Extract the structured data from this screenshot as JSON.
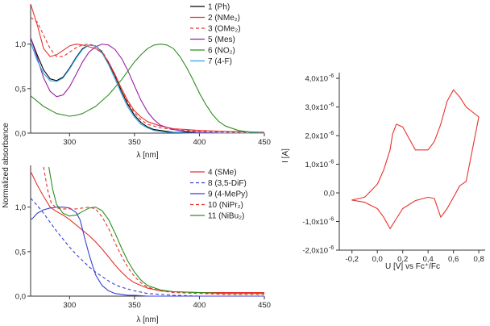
{
  "chart_data": [
    {
      "type": "line",
      "panel": "top-left",
      "xlabel": "λ [nm]",
      "ylabel": "Normalized absorbance",
      "xlim": [
        270,
        450
      ],
      "ylim": [
        0,
        1.45
      ],
      "xticks": [
        "300",
        "350",
        "400",
        "450"
      ],
      "yticks": [
        "0,0",
        "0,5",
        "1,0"
      ],
      "legend_position": "top-right",
      "series": [
        {
          "name": "1 (Ph)",
          "color": "#000000",
          "dash": false,
          "x": [
            270,
            275,
            280,
            285,
            290,
            295,
            300,
            305,
            310,
            315,
            320,
            325,
            330,
            335,
            340,
            345,
            350,
            355,
            360,
            365,
            370,
            375,
            380,
            390,
            400,
            420,
            450
          ],
          "y": [
            1.07,
            0.88,
            0.71,
            0.61,
            0.59,
            0.63,
            0.73,
            0.85,
            0.95,
            0.99,
            0.98,
            0.91,
            0.79,
            0.64,
            0.47,
            0.32,
            0.2,
            0.12,
            0.07,
            0.04,
            0.03,
            0.02,
            0.01,
            0.01,
            0.0,
            0.0,
            0.0
          ]
        },
        {
          "name": "2 (NMe2)",
          "color": "#e8312b",
          "dash": false,
          "x": [
            270,
            275,
            280,
            285,
            290,
            295,
            300,
            305,
            310,
            315,
            320,
            325,
            330,
            335,
            340,
            345,
            350,
            355,
            360,
            370,
            380,
            390,
            400,
            420,
            450
          ],
          "y": [
            1.5,
            1.22,
            0.95,
            0.86,
            0.88,
            0.93,
            0.98,
            1.0,
            0.99,
            0.97,
            0.95,
            0.9,
            0.8,
            0.66,
            0.5,
            0.36,
            0.25,
            0.18,
            0.13,
            0.08,
            0.05,
            0.04,
            0.03,
            0.02,
            0.01
          ]
        },
        {
          "name": "3 (OMe2)",
          "color": "#e8312b",
          "dash": true,
          "x": [
            270,
            275,
            280,
            285,
            290,
            295,
            300,
            305,
            310,
            315,
            320,
            325,
            330,
            335,
            340,
            345,
            350,
            355,
            360,
            370,
            380,
            390,
            400,
            420,
            450
          ],
          "y": [
            1.3,
            1.25,
            1.1,
            0.95,
            0.86,
            0.86,
            0.91,
            0.96,
            0.99,
            1.0,
            0.98,
            0.92,
            0.8,
            0.65,
            0.48,
            0.34,
            0.23,
            0.15,
            0.1,
            0.06,
            0.04,
            0.03,
            0.02,
            0.01,
            0.01
          ]
        },
        {
          "name": "5 (Mes)",
          "color": "#9a1fa3",
          "dash": false,
          "x": [
            270,
            275,
            280,
            285,
            290,
            295,
            300,
            305,
            310,
            315,
            320,
            325,
            330,
            335,
            340,
            345,
            350,
            355,
            360,
            365,
            370,
            380,
            390,
            400,
            420,
            450
          ],
          "y": [
            1.07,
            0.85,
            0.62,
            0.47,
            0.41,
            0.43,
            0.52,
            0.66,
            0.8,
            0.91,
            0.97,
            1.0,
            0.99,
            0.94,
            0.84,
            0.7,
            0.53,
            0.37,
            0.24,
            0.15,
            0.09,
            0.04,
            0.02,
            0.01,
            0.0,
            0.0
          ]
        },
        {
          "name": "6 (NO2)",
          "color": "#2c8f1e",
          "dash": false,
          "x": [
            270,
            280,
            290,
            300,
            305,
            310,
            320,
            330,
            340,
            345,
            350,
            355,
            360,
            365,
            370,
            375,
            380,
            385,
            390,
            395,
            400,
            405,
            410,
            415,
            420,
            430,
            440,
            450
          ],
          "y": [
            0.42,
            0.3,
            0.22,
            0.19,
            0.2,
            0.22,
            0.3,
            0.43,
            0.6,
            0.7,
            0.8,
            0.88,
            0.95,
            0.99,
            1.0,
            0.99,
            0.95,
            0.86,
            0.74,
            0.6,
            0.45,
            0.32,
            0.21,
            0.13,
            0.08,
            0.03,
            0.01,
            0.0
          ]
        },
        {
          "name": "7 (4-F)",
          "color": "#2ea3e6",
          "dash": false,
          "x": [
            270,
            275,
            280,
            285,
            290,
            295,
            300,
            305,
            310,
            315,
            320,
            325,
            330,
            335,
            340,
            345,
            350,
            355,
            360,
            365,
            370,
            375,
            380,
            390,
            400,
            420,
            450
          ],
          "y": [
            1.02,
            0.82,
            0.67,
            0.59,
            0.58,
            0.62,
            0.72,
            0.84,
            0.94,
            0.99,
            0.98,
            0.9,
            0.77,
            0.61,
            0.44,
            0.29,
            0.18,
            0.1,
            0.06,
            0.03,
            0.02,
            0.01,
            0.01,
            0.0,
            0.0,
            0.0,
            0.0
          ]
        }
      ]
    },
    {
      "type": "line",
      "panel": "bottom-left",
      "xlabel": "λ [nm]",
      "ylabel": "",
      "xlim": [
        270,
        450
      ],
      "ylim": [
        0,
        1.45
      ],
      "xticks": [
        "300",
        "350",
        "400",
        "450"
      ],
      "yticks": [
        "0,0",
        "0,5",
        "1,0"
      ],
      "legend_position": "top-right",
      "series": [
        {
          "name": "4 (SMe)",
          "color": "#e8312b",
          "dash": false,
          "x": [
            270,
            275,
            280,
            285,
            290,
            295,
            300,
            305,
            310,
            315,
            320,
            325,
            330,
            335,
            340,
            345,
            350,
            360,
            370,
            380,
            400,
            420,
            450
          ],
          "y": [
            1.4,
            1.25,
            1.12,
            1.0,
            0.95,
            0.91,
            0.86,
            0.8,
            0.74,
            0.68,
            0.61,
            0.53,
            0.44,
            0.35,
            0.27,
            0.2,
            0.15,
            0.09,
            0.06,
            0.05,
            0.04,
            0.04,
            0.04
          ]
        },
        {
          "name": "8 (3,5-DiF)",
          "color": "#3a3fd4",
          "dash": true,
          "x": [
            270,
            275,
            280,
            285,
            290,
            295,
            300,
            305,
            310,
            315,
            320,
            325,
            330,
            335,
            340,
            345,
            350,
            360,
            370,
            380,
            400,
            420,
            450
          ],
          "y": [
            1.1,
            1.02,
            0.93,
            0.83,
            0.73,
            0.64,
            0.55,
            0.47,
            0.4,
            0.33,
            0.27,
            0.22,
            0.17,
            0.13,
            0.1,
            0.08,
            0.06,
            0.03,
            0.02,
            0.01,
            0.0,
            0.0,
            0.0
          ]
        },
        {
          "name": "9 (4-MePy)",
          "color": "#3a3fd4",
          "dash": false,
          "x": [
            270,
            272,
            275,
            280,
            285,
            290,
            295,
            300,
            305,
            308,
            310,
            312,
            315,
            318,
            320,
            325,
            330,
            335,
            340,
            345,
            350,
            360,
            380,
            400,
            420,
            450
          ],
          "y": [
            0.86,
            0.88,
            0.93,
            0.97,
            0.99,
            1.0,
            1.0,
            0.99,
            0.94,
            0.86,
            0.75,
            0.63,
            0.47,
            0.33,
            0.24,
            0.12,
            0.06,
            0.03,
            0.02,
            0.01,
            0.01,
            0.0,
            0.0,
            0.0,
            0.0,
            0.0
          ]
        },
        {
          "name": "10 (NiPr2)",
          "color": "#e8312b",
          "dash": true,
          "x": [
            280,
            283,
            286,
            290,
            295,
            300,
            305,
            310,
            315,
            320,
            325,
            330,
            335,
            340,
            345,
            350,
            355,
            360,
            370,
            380,
            400,
            420,
            450
          ],
          "y": [
            1.45,
            1.2,
            1.04,
            0.99,
            0.98,
            0.98,
            0.98,
            0.99,
            1.0,
            0.98,
            0.89,
            0.76,
            0.6,
            0.45,
            0.32,
            0.22,
            0.15,
            0.1,
            0.06,
            0.04,
            0.03,
            0.02,
            0.02
          ]
        },
        {
          "name": "11 (NiBu2)",
          "color": "#2c8f1e",
          "dash": false,
          "x": [
            284,
            287,
            290,
            295,
            300,
            305,
            310,
            315,
            320,
            325,
            330,
            335,
            340,
            345,
            350,
            355,
            360,
            370,
            380,
            400,
            420,
            450
          ],
          "y": [
            1.45,
            1.2,
            1.03,
            0.93,
            0.9,
            0.91,
            0.95,
            0.99,
            1.0,
            0.96,
            0.86,
            0.71,
            0.54,
            0.39,
            0.27,
            0.18,
            0.12,
            0.07,
            0.05,
            0.04,
            0.03,
            0.03
          ]
        }
      ]
    },
    {
      "type": "line",
      "panel": "right",
      "xlabel": "U [V] vs Fc⁺/Fc",
      "ylabel": "I [A]",
      "xlim": [
        -0.3,
        0.85
      ],
      "ylim": [
        -2e-06,
        4.2e-06
      ],
      "xticks": [
        "-0,2",
        "0,0",
        "0,2",
        "0,4",
        "0,6",
        "0,8"
      ],
      "yticks": [
        "-2,0x10",
        "-1,0x10",
        "0,0",
        "1,0x10",
        "2,0x10",
        "3,0x10",
        "4,0x10"
      ],
      "ytick_exponent": "-6",
      "series": [
        {
          "name": "",
          "color": "#e8312b",
          "dash": false,
          "x": [
            -0.2,
            -0.1,
            0.0,
            0.05,
            0.1,
            0.15,
            0.2,
            0.3,
            0.4,
            0.45,
            0.5,
            0.55,
            0.6,
            0.65,
            0.7,
            0.8,
            0.7,
            0.65,
            0.6,
            0.55,
            0.5,
            0.45,
            0.4,
            0.3,
            0.2,
            0.15,
            0.12,
            0.1,
            0.05,
            0.0,
            -0.1,
            -0.2
          ],
          "y": [
            -2.5e-07,
            -3.3e-07,
            -5.5e-07,
            -8.5e-07,
            -1.25e-06,
            -9e-07,
            -5.5e-07,
            -2.7e-07,
            -1.5e-07,
            -2e-07,
            -8.5e-07,
            -5.5e-07,
            -1.5e-07,
            2.5e-07,
            4e-07,
            2.65e-06,
            3e-06,
            3.35e-06,
            3.6e-06,
            3.2e-06,
            2.4e-06,
            1.8e-06,
            1.5e-06,
            1.5e-06,
            2.3e-06,
            2.4e-06,
            2.05e-06,
            1.5e-06,
            8e-07,
            3e-07,
            -1.5e-07,
            -2.5e-07
          ]
        }
      ]
    }
  ]
}
